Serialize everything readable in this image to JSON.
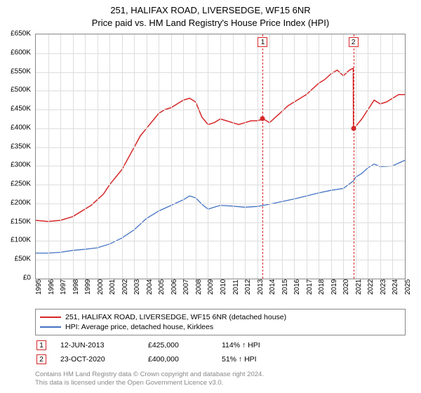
{
  "title_line1": "251, HALIFAX ROAD, LIVERSEDGE, WF15 6NR",
  "title_line2": "Price paid vs. HM Land Registry's House Price Index (HPI)",
  "chart": {
    "type": "line",
    "background_color": "#ffffff",
    "grid_color": "#dddddd",
    "axis_color": "#888888",
    "y": {
      "min": 0,
      "max": 650000,
      "step": 50000,
      "ticks": [
        "£0",
        "£50K",
        "£100K",
        "£150K",
        "£200K",
        "£250K",
        "£300K",
        "£350K",
        "£400K",
        "£450K",
        "£500K",
        "£550K",
        "£600K",
        "£650K"
      ]
    },
    "x": {
      "min": 1995,
      "max": 2025,
      "ticks": [
        1995,
        1996,
        1997,
        1998,
        1999,
        2000,
        2001,
        2002,
        2003,
        2004,
        2005,
        2006,
        2007,
        2008,
        2009,
        2010,
        2011,
        2012,
        2013,
        2014,
        2015,
        2016,
        2017,
        2018,
        2019,
        2020,
        2021,
        2022,
        2023,
        2024,
        2025
      ]
    },
    "series": [
      {
        "name": "251, HALIFAX ROAD, LIVERSEDGE, WF15 6NR (detached house)",
        "color": "#d62728",
        "line_width": 1.5,
        "data": [
          [
            1995,
            155000
          ],
          [
            1996,
            152000
          ],
          [
            1997,
            155000
          ],
          [
            1998,
            165000
          ],
          [
            1998.5,
            175000
          ],
          [
            1999,
            185000
          ],
          [
            1999.5,
            195000
          ],
          [
            2000,
            210000
          ],
          [
            2000.5,
            225000
          ],
          [
            2001,
            250000
          ],
          [
            2001.5,
            270000
          ],
          [
            2002,
            290000
          ],
          [
            2002.5,
            320000
          ],
          [
            2003,
            350000
          ],
          [
            2003.5,
            380000
          ],
          [
            2004,
            400000
          ],
          [
            2004.5,
            420000
          ],
          [
            2005,
            440000
          ],
          [
            2005.5,
            450000
          ],
          [
            2006,
            455000
          ],
          [
            2006.5,
            465000
          ],
          [
            2007,
            475000
          ],
          [
            2007.5,
            480000
          ],
          [
            2008,
            470000
          ],
          [
            2008.5,
            430000
          ],
          [
            2009,
            410000
          ],
          [
            2009.5,
            415000
          ],
          [
            2010,
            425000
          ],
          [
            2010.5,
            420000
          ],
          [
            2011,
            415000
          ],
          [
            2011.5,
            410000
          ],
          [
            2012,
            415000
          ],
          [
            2012.5,
            420000
          ],
          [
            2013,
            420000
          ],
          [
            2013.5,
            425000
          ],
          [
            2014,
            415000
          ],
          [
            2014.5,
            430000
          ],
          [
            2015,
            445000
          ],
          [
            2015.5,
            460000
          ],
          [
            2016,
            470000
          ],
          [
            2016.5,
            480000
          ],
          [
            2017,
            490000
          ],
          [
            2017.5,
            505000
          ],
          [
            2018,
            520000
          ],
          [
            2018.5,
            530000
          ],
          [
            2019,
            545000
          ],
          [
            2019.5,
            555000
          ],
          [
            2020,
            540000
          ],
          [
            2020.5,
            555000
          ],
          [
            2020.8,
            560000
          ],
          [
            2020.82,
            400000
          ],
          [
            2021,
            405000
          ],
          [
            2021.5,
            425000
          ],
          [
            2022,
            450000
          ],
          [
            2022.5,
            475000
          ],
          [
            2023,
            465000
          ],
          [
            2023.5,
            470000
          ],
          [
            2024,
            480000
          ],
          [
            2024.5,
            490000
          ],
          [
            2025,
            490000
          ]
        ]
      },
      {
        "name": "HPI: Average price, detached house, Kirklees",
        "color": "#4472c4",
        "line_width": 1.3,
        "data": [
          [
            1995,
            68000
          ],
          [
            1996,
            68000
          ],
          [
            1997,
            70000
          ],
          [
            1998,
            75000
          ],
          [
            1999,
            78000
          ],
          [
            2000,
            82000
          ],
          [
            2001,
            92000
          ],
          [
            2002,
            108000
          ],
          [
            2003,
            130000
          ],
          [
            2004,
            160000
          ],
          [
            2005,
            180000
          ],
          [
            2006,
            195000
          ],
          [
            2007,
            210000
          ],
          [
            2007.5,
            220000
          ],
          [
            2008,
            215000
          ],
          [
            2008.5,
            198000
          ],
          [
            2009,
            185000
          ],
          [
            2009.5,
            190000
          ],
          [
            2010,
            195000
          ],
          [
            2011,
            193000
          ],
          [
            2012,
            190000
          ],
          [
            2013,
            192000
          ],
          [
            2013.5,
            195000
          ],
          [
            2014,
            198000
          ],
          [
            2015,
            205000
          ],
          [
            2016,
            212000
          ],
          [
            2017,
            220000
          ],
          [
            2018,
            228000
          ],
          [
            2019,
            235000
          ],
          [
            2020,
            240000
          ],
          [
            2020.82,
            260000
          ],
          [
            2021,
            270000
          ],
          [
            2021.5,
            280000
          ],
          [
            2022,
            295000
          ],
          [
            2022.5,
            305000
          ],
          [
            2023,
            298000
          ],
          [
            2024,
            300000
          ],
          [
            2025,
            315000
          ]
        ]
      }
    ],
    "markers": [
      {
        "id": "1",
        "x": 2013.45,
        "y": 425000,
        "box_color": "#d62728",
        "dot_color": "#d62728"
      },
      {
        "id": "2",
        "x": 2020.82,
        "y": 400000,
        "box_color": "#d62728",
        "dot_color": "#d62728"
      }
    ]
  },
  "legend": {
    "rows": [
      {
        "color": "#d62728",
        "label": "251, HALIFAX ROAD, LIVERSEDGE, WF15 6NR (detached house)"
      },
      {
        "color": "#4472c4",
        "label": "HPI: Average price, detached house, Kirklees"
      }
    ]
  },
  "events": [
    {
      "id": "1",
      "box_color": "#d62728",
      "date": "12-JUN-2013",
      "price": "£425,000",
      "hpi": "114% ↑ HPI"
    },
    {
      "id": "2",
      "box_color": "#d62728",
      "date": "23-OCT-2020",
      "price": "£400,000",
      "hpi": "51% ↑ HPI"
    }
  ],
  "footer_line1": "Contains HM Land Registry data © Crown copyright and database right 2024.",
  "footer_line2": "This data is licensed under the Open Government Licence v3.0."
}
